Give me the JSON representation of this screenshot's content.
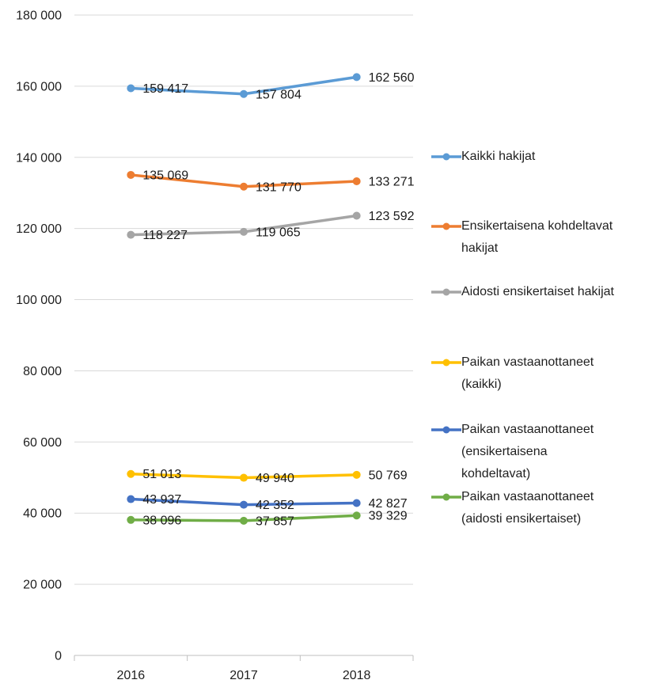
{
  "chart_data": {
    "type": "line",
    "x": [
      "2016",
      "2017",
      "2018"
    ],
    "series": [
      {
        "name": "Kaikki hakijat",
        "color": "#5B9BD5",
        "values": [
          159417,
          157804,
          162560
        ],
        "labels": [
          "159 417",
          "157 804",
          "162 560"
        ]
      },
      {
        "name": "Ensikertaisena kohdeltavat hakijat",
        "color": "#ED7D31",
        "values": [
          135069,
          131770,
          133271
        ],
        "labels": [
          "135 069",
          "131 770",
          "133 271"
        ]
      },
      {
        "name": "Aidosti ensikertaiset hakijat",
        "color": "#A5A5A5",
        "values": [
          118227,
          119065,
          123592
        ],
        "labels": [
          "118 227",
          "119 065",
          "123 592"
        ]
      },
      {
        "name": "Paikan vastaanottaneet (kaikki)",
        "color": "#FFC000",
        "values": [
          51013,
          49940,
          50769
        ],
        "labels": [
          "51 013",
          "49 940",
          "50 769"
        ]
      },
      {
        "name": "Paikan vastaanottaneet (ensikertaisena kohdeltavat)",
        "color": "#4472C4",
        "values": [
          43937,
          42352,
          42827
        ],
        "labels": [
          "43 937",
          "42 352",
          "42 827"
        ]
      },
      {
        "name": "Paikan vastaanottaneet (aidosti ensikertaiset)",
        "color": "#70AD47",
        "values": [
          38096,
          37857,
          39329
        ],
        "labels": [
          "38 096",
          "37 857",
          "39 329"
        ]
      }
    ],
    "ylim": [
      0,
      180000
    ],
    "ytick_step": 20000,
    "ytick_labels": [
      "0",
      "20 000",
      "40 000",
      "60 000",
      "80 000",
      "100 000",
      "120 000",
      "140 000",
      "160 000",
      "180 000"
    ],
    "grid": true,
    "data_labels": true,
    "legend_position": "right"
  },
  "legend": {
    "items": [
      {
        "series": 0,
        "lines": [
          "Kaikki hakijat"
        ]
      },
      {
        "series": 1,
        "lines": [
          "Ensikertaisena kohdeltavat",
          "hakijat"
        ]
      },
      {
        "series": 2,
        "lines": [
          "Aidosti ensikertaiset hakijat"
        ]
      },
      {
        "series": 3,
        "lines": [
          "Paikan vastaanottaneet",
          "(kaikki)"
        ]
      },
      {
        "series": 4,
        "lines": [
          "Paikan vastaanottaneet",
          "(ensikertaisena",
          "kohdeltavat)"
        ]
      },
      {
        "series": 5,
        "lines": [
          "Paikan vastaanottaneet",
          "(aidosti ensikertaiset)"
        ]
      }
    ]
  },
  "colors": {
    "gridline": "#D9D9D9",
    "axis_line": "#BFBFBF",
    "tick_text": "#1f1f1f",
    "data_label_text": "#1a1a1a"
  }
}
